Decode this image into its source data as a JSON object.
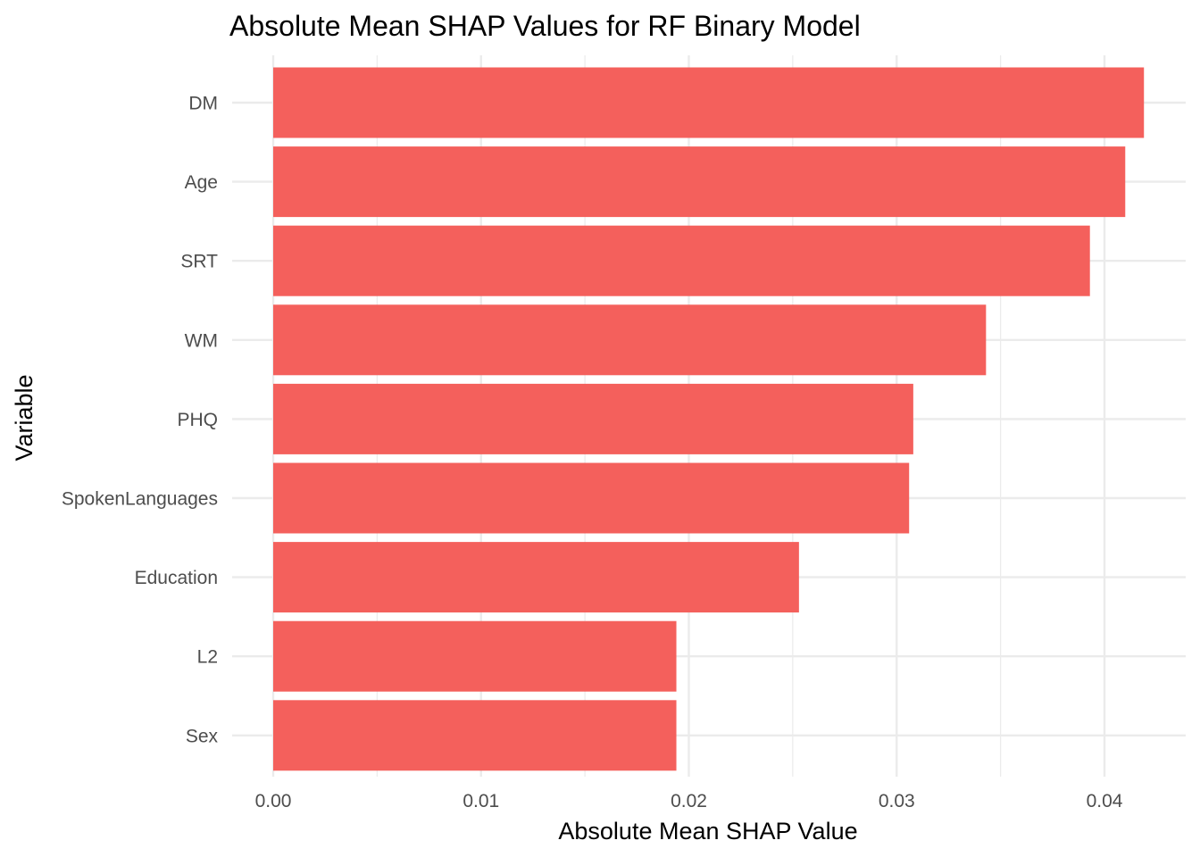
{
  "chart_data": {
    "type": "bar",
    "orientation": "horizontal",
    "title": "Absolute Mean SHAP Values for RF Binary Model",
    "xlabel": "Absolute Mean SHAP Value",
    "ylabel": "Variable",
    "categories": [
      "DM",
      "Age",
      "SRT",
      "WM",
      "PHQ",
      "SpokenLanguages",
      "Education",
      "L2",
      "Sex"
    ],
    "values": [
      0.0419,
      0.041,
      0.0393,
      0.0343,
      0.0308,
      0.0306,
      0.0253,
      0.0194,
      0.0194
    ],
    "xlim": [
      0.0,
      0.042
    ],
    "xticks": [
      0.0,
      0.01,
      0.02,
      0.03,
      0.04
    ],
    "xtick_labels": [
      "0.00",
      "0.01",
      "0.02",
      "0.03",
      "0.04"
    ],
    "bar_color": "#f4605c",
    "grid": true,
    "legend": "none"
  }
}
